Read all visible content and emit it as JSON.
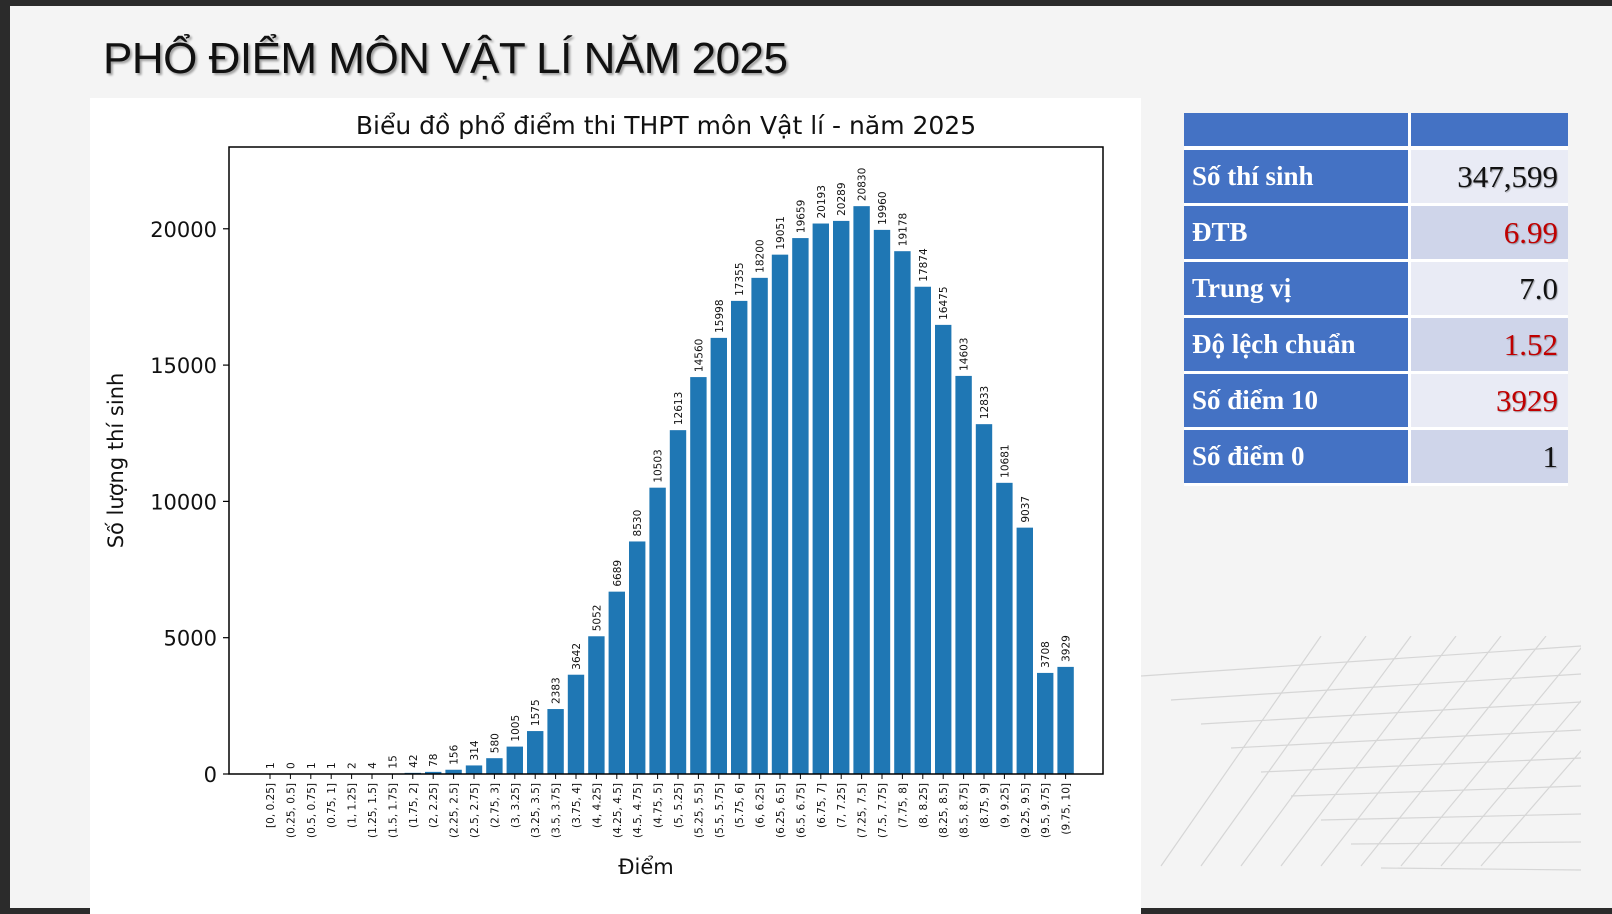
{
  "slide": {
    "title": "PHỔ ĐIỂM MÔN VẬT LÍ NĂM 2025"
  },
  "stats": [
    {
      "label": "Số thí sinh",
      "value": "347,599",
      "color": "#111111"
    },
    {
      "label": "ĐTB",
      "value": "6.99",
      "color": "#c00000"
    },
    {
      "label": "Trung vị",
      "value": "7.0",
      "color": "#111111"
    },
    {
      "label": "Độ lệch chuẩn",
      "value": "1.52",
      "color": "#c00000"
    },
    {
      "label": "Số điểm 10",
      "value": "3929",
      "color": "#c00000"
    },
    {
      "label": "Số điểm 0",
      "value": "1",
      "color": "#111111"
    }
  ],
  "chart_data": {
    "type": "bar",
    "title": "Biểu đồ phổ điểm thi THPT môn Vật lí - năm 2025",
    "xlabel": "Điểm",
    "ylabel": "Số lượng thí sinh",
    "ylim": [
      0,
      23000
    ],
    "yticks": [
      0,
      5000,
      10000,
      15000,
      20000
    ],
    "grid": false,
    "bar_color": "#1f77b4",
    "categories": [
      "[0, 0.25]",
      "(0.25, 0.5]",
      "(0.5, 0.75]",
      "(0.75, 1]",
      "(1, 1.25]",
      "(1.25, 1.5]",
      "(1.5, 1.75]",
      "(1.75, 2]",
      "(2, 2.25]",
      "(2.25, 2.5]",
      "(2.5, 2.75]",
      "(2.75, 3]",
      "(3, 3.25]",
      "(3.25, 3.5]",
      "(3.5, 3.75]",
      "(3.75, 4]",
      "(4, 4.25]",
      "(4.25, 4.5]",
      "(4.5, 4.75]",
      "(4.75, 5]",
      "(5, 5.25]",
      "(5.25, 5.5]",
      "(5.5, 5.75]",
      "(5.75, 6]",
      "(6, 6.25]",
      "(6.25, 6.5]",
      "(6.5, 6.75]",
      "(6.75, 7]",
      "(7, 7.25]",
      "(7.25, 7.5]",
      "(7.5, 7.75]",
      "(7.75, 8]",
      "(8, 8.25]",
      "(8.25, 8.5]",
      "(8.5, 8.75]",
      "(8.75, 9]",
      "(9, 9.25]",
      "(9.25, 9.5]",
      "(9.5, 9.75]",
      "(9.75, 10]"
    ],
    "values": [
      1,
      0,
      1,
      1,
      2,
      4,
      15,
      42,
      78,
      156,
      314,
      580,
      1005,
      1575,
      2383,
      3642,
      5052,
      6689,
      8530,
      10503,
      12613,
      14560,
      15998,
      17355,
      18200,
      19051,
      19659,
      20193,
      20289,
      20830,
      19960,
      19178,
      17874,
      16475,
      14603,
      12833,
      10681,
      9037,
      3708,
      3929
    ]
  }
}
